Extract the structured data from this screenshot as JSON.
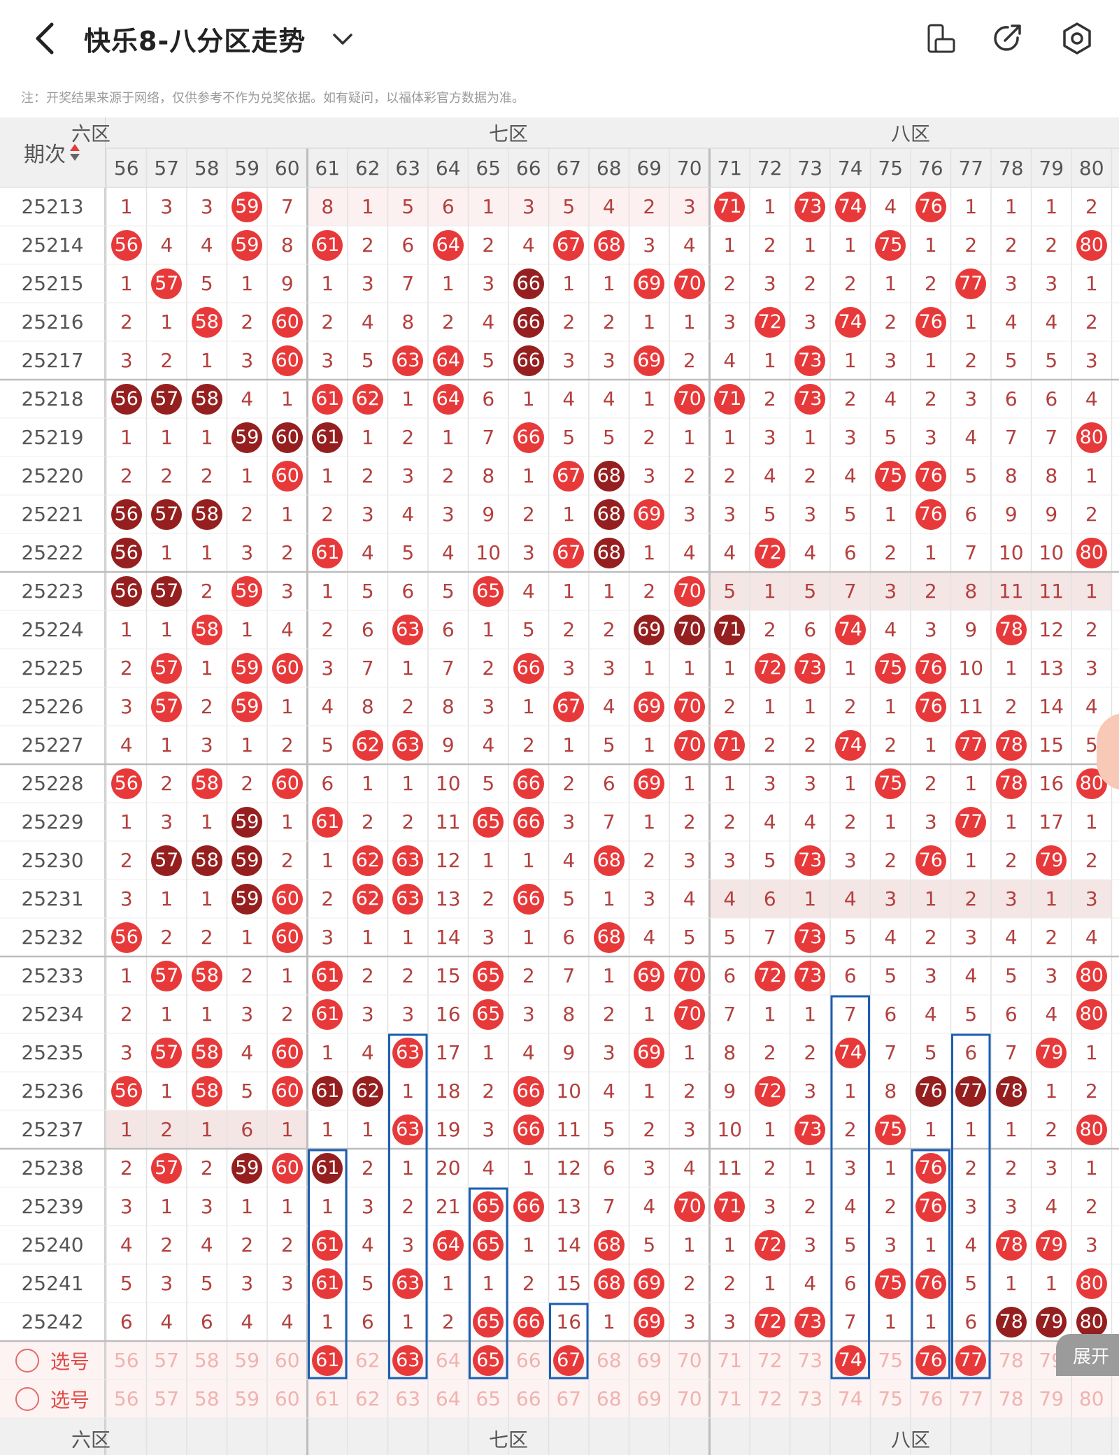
{
  "header": {
    "title": "快乐8-八分区走势",
    "note": "注：开奖结果来源于网络，仅供参考不作为兑奖依据。如有疑问，以福体彩官方数据为准。"
  },
  "table": {
    "period_header": "期次",
    "zones": [
      "六区",
      "七区",
      "八区"
    ],
    "columns": [
      56,
      57,
      58,
      59,
      60,
      61,
      62,
      63,
      64,
      65,
      66,
      67,
      68,
      69,
      70,
      71,
      72,
      73,
      74,
      75,
      76,
      77,
      78,
      79,
      80
    ],
    "rows": [
      {
        "period": "25213",
        "cells": [
          1,
          3,
          3,
          "59",
          7,
          8,
          1,
          5,
          6,
          1,
          3,
          5,
          4,
          2,
          3,
          "71",
          1,
          "73",
          "74",
          4,
          "76",
          1,
          1,
          1,
          2
        ]
      },
      {
        "period": "25214",
        "cells": [
          "56",
          4,
          4,
          "59",
          8,
          "61",
          2,
          6,
          "64",
          2,
          4,
          "67",
          "68",
          3,
          4,
          1,
          2,
          1,
          1,
          "75",
          1,
          2,
          2,
          2,
          "80"
        ]
      },
      {
        "period": "25215",
        "cells": [
          1,
          "57",
          5,
          1,
          9,
          1,
          3,
          7,
          1,
          3,
          "66d",
          1,
          1,
          "69",
          "70",
          2,
          3,
          2,
          2,
          1,
          2,
          "77",
          3,
          3,
          1
        ]
      },
      {
        "period": "25216",
        "cells": [
          2,
          1,
          "58",
          2,
          "60",
          2,
          4,
          8,
          2,
          4,
          "66d",
          2,
          2,
          1,
          1,
          3,
          "72",
          3,
          "74",
          2,
          "76",
          1,
          4,
          4,
          2
        ]
      },
      {
        "period": "25217",
        "cells": [
          3,
          2,
          1,
          3,
          "60",
          3,
          5,
          "63",
          "64",
          5,
          "66d",
          3,
          3,
          "69",
          2,
          4,
          1,
          "73",
          1,
          3,
          1,
          2,
          5,
          5,
          3
        ]
      },
      {
        "period": "25218",
        "cells": [
          "56d",
          "57d",
          "58d",
          4,
          1,
          "61",
          "62",
          1,
          "64",
          6,
          1,
          4,
          4,
          1,
          "70",
          "71",
          2,
          "73",
          2,
          4,
          2,
          3,
          6,
          6,
          4
        ]
      },
      {
        "period": "25219",
        "cells": [
          1,
          1,
          1,
          "59d",
          "60d",
          "61d",
          1,
          2,
          1,
          7,
          "66",
          5,
          5,
          2,
          1,
          1,
          3,
          1,
          3,
          5,
          3,
          4,
          7,
          7,
          "80"
        ]
      },
      {
        "period": "25220",
        "cells": [
          2,
          2,
          2,
          1,
          "60",
          1,
          2,
          3,
          2,
          8,
          1,
          "67",
          "68d",
          3,
          2,
          2,
          4,
          2,
          4,
          "75",
          "76",
          5,
          8,
          8,
          1
        ]
      },
      {
        "period": "25221",
        "cells": [
          "56d",
          "57d",
          "58d",
          2,
          1,
          2,
          3,
          4,
          3,
          9,
          2,
          1,
          "68d",
          "69",
          3,
          3,
          5,
          3,
          5,
          1,
          "76",
          6,
          9,
          9,
          2
        ]
      },
      {
        "period": "25222",
        "cells": [
          "56d",
          1,
          1,
          3,
          2,
          "61",
          4,
          5,
          4,
          10,
          3,
          "67",
          "68d",
          1,
          4,
          4,
          "72",
          4,
          6,
          2,
          1,
          7,
          10,
          10,
          "80"
        ]
      },
      {
        "period": "25223",
        "cells": [
          "56d",
          "57d",
          2,
          "59",
          3,
          1,
          5,
          6,
          5,
          "65",
          4,
          1,
          1,
          2,
          "70",
          5,
          1,
          5,
          7,
          3,
          2,
          8,
          11,
          11,
          1
        ]
      },
      {
        "period": "25224",
        "cells": [
          1,
          1,
          "58",
          1,
          4,
          2,
          6,
          "63",
          6,
          1,
          5,
          2,
          2,
          "69d",
          "70d",
          "71d",
          2,
          6,
          "74",
          4,
          3,
          9,
          "78",
          12,
          2
        ]
      },
      {
        "period": "25225",
        "cells": [
          2,
          "57",
          1,
          "59",
          "60",
          3,
          7,
          1,
          7,
          2,
          "66",
          3,
          3,
          1,
          1,
          1,
          "72",
          "73",
          1,
          "75",
          "76",
          10,
          1,
          13,
          3
        ]
      },
      {
        "period": "25226",
        "cells": [
          3,
          "57",
          2,
          "59",
          1,
          4,
          8,
          2,
          8,
          3,
          1,
          "67",
          4,
          "69",
          "70",
          2,
          1,
          1,
          2,
          1,
          "76",
          11,
          2,
          14,
          4
        ]
      },
      {
        "period": "25227",
        "cells": [
          4,
          1,
          3,
          1,
          2,
          5,
          "62",
          "63",
          9,
          4,
          2,
          1,
          5,
          1,
          "70",
          "71",
          2,
          2,
          "74",
          2,
          1,
          "77",
          "78",
          15,
          5
        ]
      },
      {
        "period": "25228",
        "cells": [
          "56",
          2,
          "58",
          2,
          "60",
          6,
          1,
          1,
          10,
          5,
          "66",
          2,
          6,
          "69",
          1,
          1,
          3,
          3,
          1,
          "75",
          2,
          1,
          "78",
          16,
          "80"
        ]
      },
      {
        "period": "25229",
        "cells": [
          1,
          3,
          1,
          "59d",
          1,
          "61",
          2,
          2,
          11,
          "65",
          "66",
          3,
          7,
          1,
          2,
          2,
          4,
          4,
          2,
          1,
          3,
          "77",
          1,
          17,
          1
        ]
      },
      {
        "period": "25230",
        "cells": [
          2,
          "57d",
          "58d",
          "59d",
          2,
          1,
          "62",
          "63",
          12,
          1,
          1,
          4,
          "68",
          2,
          3,
          3,
          5,
          "73",
          3,
          2,
          "76",
          1,
          2,
          "79",
          2
        ]
      },
      {
        "period": "25231",
        "cells": [
          3,
          1,
          1,
          "59d",
          "60",
          2,
          "62",
          "63",
          13,
          2,
          "66",
          5,
          1,
          3,
          4,
          4,
          6,
          1,
          4,
          3,
          1,
          2,
          3,
          1,
          3
        ]
      },
      {
        "period": "25232",
        "cells": [
          "56",
          2,
          2,
          1,
          "60",
          3,
          1,
          1,
          14,
          3,
          1,
          6,
          "68",
          4,
          5,
          5,
          7,
          "73",
          5,
          4,
          2,
          3,
          4,
          2,
          4
        ]
      },
      {
        "period": "25233",
        "cells": [
          1,
          "57",
          "58",
          2,
          1,
          "61",
          2,
          2,
          15,
          "65",
          2,
          7,
          1,
          "69",
          "70",
          6,
          "72",
          "73",
          6,
          5,
          3,
          4,
          5,
          3,
          "80"
        ]
      },
      {
        "period": "25234",
        "cells": [
          2,
          1,
          1,
          3,
          2,
          "61",
          3,
          3,
          16,
          "65",
          3,
          8,
          2,
          1,
          "70",
          7,
          1,
          1,
          7,
          6,
          4,
          5,
          6,
          4,
          "80"
        ]
      },
      {
        "period": "25235",
        "cells": [
          3,
          "57",
          "58",
          4,
          "60",
          1,
          4,
          "63",
          17,
          1,
          4,
          9,
          3,
          "69",
          1,
          8,
          2,
          2,
          "74",
          7,
          5,
          6,
          7,
          "79",
          1
        ]
      },
      {
        "period": "25236",
        "cells": [
          "56",
          1,
          "58",
          5,
          "60",
          "61d",
          "62d",
          1,
          18,
          2,
          "66",
          10,
          4,
          1,
          2,
          9,
          "72",
          3,
          1,
          8,
          "76d",
          "77d",
          "78d",
          1,
          2
        ]
      },
      {
        "period": "25237",
        "cells": [
          1,
          2,
          1,
          6,
          1,
          1,
          1,
          "63",
          19,
          3,
          "66",
          11,
          5,
          2,
          3,
          10,
          1,
          "73",
          2,
          "75",
          1,
          1,
          1,
          2,
          "80"
        ]
      },
      {
        "period": "25238",
        "cells": [
          2,
          "57",
          2,
          "59d",
          "60",
          "61d",
          2,
          1,
          20,
          4,
          1,
          12,
          6,
          3,
          4,
          11,
          2,
          1,
          3,
          1,
          "76",
          2,
          2,
          3,
          1
        ]
      },
      {
        "period": "25239",
        "cells": [
          3,
          1,
          3,
          1,
          1,
          1,
          3,
          2,
          21,
          "65",
          "66",
          13,
          7,
          4,
          "70",
          "71",
          3,
          2,
          4,
          2,
          "76",
          3,
          3,
          4,
          2
        ]
      },
      {
        "period": "25240",
        "cells": [
          4,
          2,
          4,
          2,
          2,
          "61",
          4,
          3,
          "64",
          "65",
          1,
          14,
          "68",
          5,
          1,
          1,
          "72",
          3,
          5,
          3,
          1,
          4,
          "78",
          "79",
          3
        ]
      },
      {
        "period": "25241",
        "cells": [
          5,
          3,
          5,
          3,
          3,
          "61",
          5,
          "63",
          1,
          1,
          2,
          15,
          "68",
          "69",
          2,
          2,
          1,
          4,
          6,
          "75",
          "76",
          5,
          1,
          1,
          "80"
        ]
      },
      {
        "period": "25242",
        "cells": [
          6,
          4,
          6,
          4,
          4,
          1,
          6,
          1,
          2,
          "65",
          "66",
          16,
          1,
          "69",
          3,
          3,
          "72",
          "73",
          7,
          1,
          1,
          6,
          "78d",
          "79d",
          "80d"
        ]
      }
    ],
    "select_label": "选号",
    "select_row1": [
      "56",
      "57",
      "58",
      "59",
      "60",
      "61",
      "62",
      "63",
      "64",
      "65",
      "66",
      "67",
      "68",
      "69",
      "70",
      "71",
      "72",
      "73",
      "74",
      "75",
      "76",
      "77",
      "78",
      "79",
      "80"
    ],
    "select_row2": [
      "56",
      "57",
      "58",
      "59",
      "60",
      "61",
      "62",
      "63",
      "64",
      "65",
      "66",
      "67",
      "68",
      "69",
      "70",
      "71",
      "72",
      "73",
      "74",
      "75",
      "76",
      "77",
      "78",
      "79",
      "80"
    ],
    "selected": [
      "61",
      "63",
      "65",
      "67",
      "74",
      "76",
      "77"
    ],
    "expand_label": "展开"
  }
}
